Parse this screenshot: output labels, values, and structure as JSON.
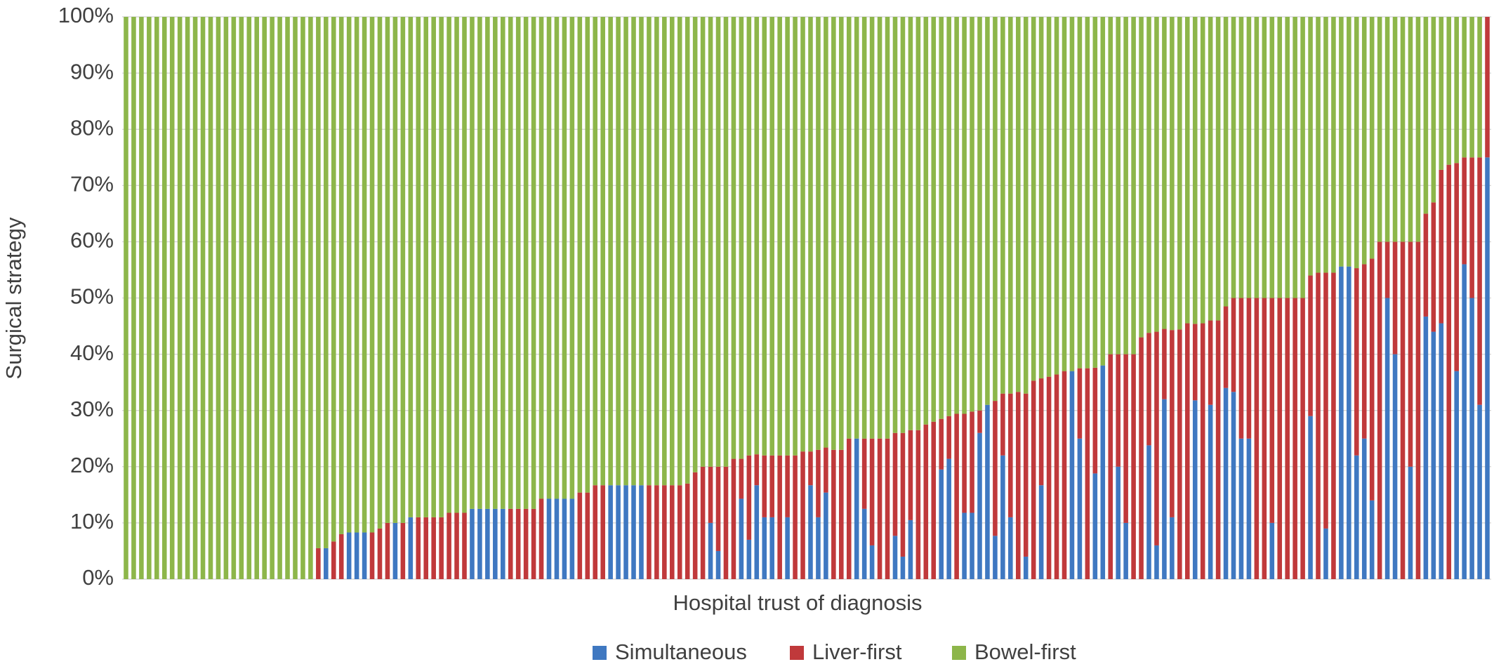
{
  "chart_data": {
    "type": "stacked_bar",
    "y_label": "Surgical strategy",
    "x_label": "Hospital trust of diagnosis",
    "ylim": [
      0,
      100
    ],
    "yticks": [
      {
        "value": 0,
        "label": "0%"
      },
      {
        "value": 10,
        "label": "10%"
      },
      {
        "value": 20,
        "label": "20%"
      },
      {
        "value": 30,
        "label": "30%"
      },
      {
        "value": 40,
        "label": "40%"
      },
      {
        "value": 50,
        "label": "50%"
      },
      {
        "value": 60,
        "label": "60%"
      },
      {
        "value": 70,
        "label": "70%"
      },
      {
        "value": 80,
        "label": "80%"
      },
      {
        "value": 90,
        "label": "90%"
      },
      {
        "value": 100,
        "label": "100%"
      }
    ],
    "grid": true,
    "legend": "bottom",
    "series": [
      {
        "name": "Simultaneous",
        "color": "#3f78c1",
        "values": [
          0,
          0,
          0,
          0,
          0,
          0,
          0,
          0,
          0,
          0,
          0,
          0,
          0,
          0,
          0,
          0,
          0,
          0,
          0,
          0,
          0,
          0,
          0,
          0,
          0,
          0,
          5.5,
          0,
          0,
          8.3,
          8.3,
          8.3,
          0,
          0,
          0,
          10,
          0,
          11,
          0,
          0,
          0,
          0,
          0,
          0,
          0,
          12.5,
          12.5,
          12.5,
          12.5,
          12.5,
          0,
          0,
          0,
          0,
          0,
          14.3,
          14.3,
          14.3,
          14.3,
          0,
          0,
          0,
          0,
          16.7,
          16.7,
          16.7,
          16.7,
          16.7,
          0,
          0,
          0,
          0,
          0,
          0,
          0,
          0,
          10,
          5,
          0,
          0,
          14.3,
          7,
          16.7,
          11,
          11,
          0,
          11,
          0,
          0,
          16.7,
          11,
          15.4,
          0,
          0,
          0,
          25,
          12.5,
          6,
          0,
          0,
          7.7,
          4,
          10.5,
          0,
          0,
          0,
          19.5,
          21.4,
          0,
          11.8,
          11.8,
          26,
          31,
          7.7,
          22,
          11,
          0,
          4,
          0,
          16.7,
          0,
          0,
          0,
          37,
          25,
          0,
          18.8,
          38,
          0,
          20,
          10,
          0,
          0,
          23.8,
          6,
          32,
          11,
          0,
          0,
          31.8,
          0,
          31,
          0,
          34,
          33.3,
          25,
          25,
          0,
          0,
          10,
          0,
          0,
          0,
          0,
          29,
          0,
          9,
          0,
          55.6,
          55.6,
          22,
          25,
          14,
          0,
          50,
          40,
          0,
          20,
          0,
          46.7,
          44,
          45.5,
          0,
          37,
          56,
          50,
          31,
          75
        ]
      },
      {
        "name": "Liver-first",
        "color": "#c0393b",
        "values": [
          0,
          0,
          0,
          0,
          0,
          0,
          0,
          0,
          0,
          0,
          0,
          0,
          0,
          0,
          0,
          0,
          0,
          0,
          0,
          0,
          0,
          0,
          0,
          0,
          0,
          5.5,
          0,
          6.7,
          8,
          0,
          0,
          0,
          8.3,
          9,
          10,
          0,
          10,
          0,
          11,
          11,
          11,
          11,
          11.8,
          11.8,
          11.8,
          0,
          0,
          0,
          0,
          0,
          12.5,
          12.5,
          12.5,
          12.5,
          14.3,
          0,
          0,
          0,
          0,
          15.4,
          15.4,
          16.7,
          16.7,
          0,
          0,
          0,
          0,
          0,
          16.7,
          16.7,
          16.7,
          16.7,
          16.7,
          17,
          19,
          20,
          10,
          15,
          20,
          21.4,
          7.1,
          15,
          5.5,
          11,
          11,
          22,
          11,
          22,
          22.7,
          6,
          12,
          8,
          23,
          23,
          25,
          0,
          12.5,
          19,
          25,
          25,
          18.3,
          22,
          16,
          26.5,
          27.5,
          28,
          9,
          7.6,
          29.4,
          17.6,
          18,
          4,
          0,
          24,
          11,
          22,
          33.3,
          29,
          35.3,
          19,
          36,
          36.4,
          37,
          0,
          12.5,
          37.5,
          18.8,
          0,
          40,
          20,
          30,
          40,
          43,
          20,
          38,
          12.5,
          33.3,
          44.4,
          45.5,
          13.6,
          45.5,
          15,
          46,
          14.5,
          16.7,
          25,
          25,
          50,
          50,
          40,
          50,
          50,
          50,
          50,
          25,
          54.5,
          45.5,
          54.5,
          0,
          0,
          33.3,
          31,
          43,
          60,
          10,
          20,
          60,
          40,
          60,
          18.3,
          23,
          27.3,
          73.7,
          37,
          19,
          25,
          44,
          25
        ]
      },
      {
        "name": "Bowel-first",
        "color": "#8db64a",
        "values": [
          100,
          100,
          100,
          100,
          100,
          100,
          100,
          100,
          100,
          100,
          100,
          100,
          100,
          100,
          100,
          100,
          100,
          100,
          100,
          100,
          100,
          100,
          100,
          100,
          100,
          94.5,
          94.5,
          93.3,
          92,
          91.7,
          91.7,
          91.7,
          91.7,
          91,
          90,
          90,
          90,
          89,
          89,
          89,
          89,
          89,
          88.2,
          88.2,
          88.2,
          87.5,
          87.5,
          87.5,
          87.5,
          87.5,
          87.5,
          87.5,
          87.5,
          87.5,
          85.7,
          85.7,
          85.7,
          85.7,
          85.7,
          84.6,
          84.6,
          83.3,
          83.3,
          83.3,
          83.3,
          83.3,
          83.3,
          83.3,
          83.3,
          83.3,
          83.3,
          83.3,
          83.3,
          83,
          81,
          80,
          80,
          80,
          80,
          78.6,
          78.6,
          78,
          77.8,
          78,
          78,
          78,
          78,
          78,
          77.3,
          77.3,
          77,
          76.6,
          77,
          77,
          75,
          75,
          75,
          75,
          75,
          75,
          74,
          74,
          73.5,
          73.5,
          72.5,
          72,
          71.5,
          71,
          70.6,
          70.6,
          70.2,
          70,
          69,
          68.3,
          67,
          67,
          66.7,
          67,
          64.7,
          64.3,
          64,
          63.6,
          63,
          63,
          62.5,
          62.5,
          62.4,
          62,
          60,
          60,
          60,
          60,
          57,
          56.2,
          56,
          55.5,
          55.7,
          55.6,
          54.5,
          54.6,
          54.5,
          54,
          54,
          51.5,
          50,
          50,
          50,
          50,
          50,
          50,
          50,
          50,
          50,
          50,
          46,
          45.5,
          45.5,
          45.5,
          44.4,
          44.4,
          44.7,
          44,
          43,
          40,
          40,
          40,
          40,
          40,
          40,
          35,
          33,
          27.2,
          26.3,
          26,
          25,
          25,
          25,
          0
        ]
      }
    ]
  }
}
